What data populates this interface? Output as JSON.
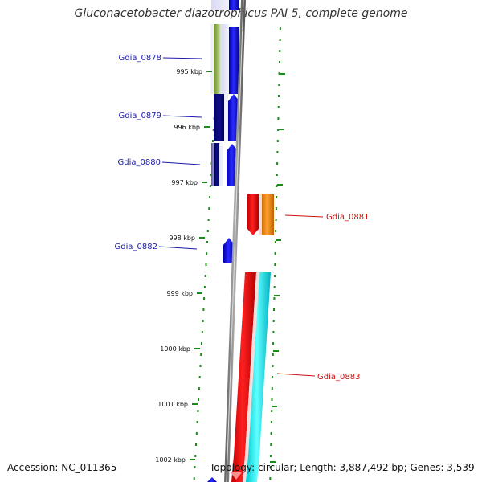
{
  "title": "Gluconacetobacter diazotrophicus PAI 5, complete genome",
  "footer": {
    "accession": "Accession: NC_011365",
    "topology": "Topology: circular; Length: 3,887,492 bp; Genes: 3,539"
  },
  "colors": {
    "forward_label": "#1a1aa8",
    "reverse_label": "#cc1111",
    "tick": "#1a8a1a",
    "backbone": "#888888"
  },
  "ticks": [
    {
      "label": "995 kbp"
    },
    {
      "label": "996 kbp"
    },
    {
      "label": "997 kbp"
    },
    {
      "label": "998 kbp"
    },
    {
      "label": "999 kbp"
    },
    {
      "label": "1000 kbp"
    },
    {
      "label": "1001 kbp"
    },
    {
      "label": "1002 kbp"
    }
  ],
  "genes": [
    {
      "name": "Gdia_0878",
      "strand": "forward",
      "color": "#1111ee"
    },
    {
      "name": "Gdia_0879",
      "strand": "forward",
      "color": "#1111cc"
    },
    {
      "name": "Gdia_0880",
      "strand": "forward",
      "color": "#1111dd"
    },
    {
      "name": "Gdia_0881",
      "strand": "reverse",
      "color": "#ff1111"
    },
    {
      "name": "Gdia_0882",
      "strand": "forward",
      "color": "#1111ee"
    },
    {
      "name": "Gdia_0883",
      "strand": "reverse",
      "color": "#ff1111"
    }
  ]
}
